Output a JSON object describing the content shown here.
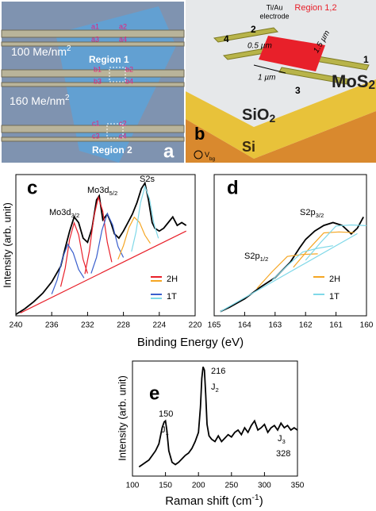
{
  "panel_a": {
    "labels": [
      "a1",
      "a2",
      "a3",
      "a4",
      "b1",
      "b2",
      "b3",
      "b4",
      "c1",
      "c2",
      "c3",
      "c4"
    ],
    "dose_1": {
      "text": "100 Me/nm",
      "sup": "2"
    },
    "region_1": "Region 1",
    "dose_2": {
      "text": "160 Me/nm",
      "sup": "2"
    },
    "region_2": "Region 2",
    "panel": "a"
  },
  "panel_b": {
    "electrode_label": [
      "Ti/Au",
      "electrode"
    ],
    "region_label": "Region 1,2",
    "electrode_numbers": [
      "1",
      "2",
      "3",
      "4"
    ],
    "dimensions": [
      "0.5 µm",
      "1.5 µm",
      "1 µm"
    ],
    "layers": [
      {
        "text": "MoS",
        "sub": "2"
      },
      {
        "text": "SiO",
        "sub": "2"
      },
      {
        "text": "Si"
      }
    ],
    "gate": {
      "text": "V",
      "sub": "bg"
    },
    "panel": "b"
  },
  "chart_data": [
    {
      "type": "line",
      "panel": "c",
      "x_label": "Binding Energy (eV)",
      "y_label": "Intensity (arb. unit)",
      "xlim": [
        240,
        220
      ],
      "xticks": [
        240,
        236,
        232,
        228,
        224,
        220
      ],
      "ylim": [
        0,
        100
      ],
      "series": [
        {
          "color": "#000000",
          "x": [
            240,
            239,
            238,
            237,
            236,
            235,
            234.5,
            234,
            233.5,
            233,
            232.5,
            232,
            231.5,
            231,
            230.7,
            230.3,
            229.8,
            229.4,
            229,
            228.5,
            228,
            227.5,
            227,
            226.5,
            226,
            225.6,
            225.2,
            224.8,
            224.5,
            224,
            223.5,
            223,
            222.5,
            222,
            221.5,
            221
          ],
          "values": [
            1,
            5,
            10,
            16,
            24,
            35,
            48,
            60,
            70,
            66,
            55,
            52,
            62,
            82,
            85,
            68,
            72,
            66,
            58,
            55,
            60,
            66,
            72,
            80,
            90,
            94,
            82,
            66,
            62,
            60,
            62,
            66,
            70,
            64,
            66,
            64
          ]
        },
        {
          "color": "#e8202a",
          "x": [
            239.5,
            221
          ],
          "values": [
            2,
            60
          ]
        },
        {
          "color": "#e8202a",
          "x": [
            235,
            234.5,
            234,
            233.5,
            233,
            232.5,
            232
          ],
          "values": [
            20.6,
            33.7,
            54.2,
            65.8,
            57.4,
            39.9,
            30
          ]
        },
        {
          "color": "#e8202a",
          "x": [
            232.3,
            231.8,
            231.3,
            230.8,
            230.3,
            229.8,
            229.3
          ],
          "values": [
            29.6,
            46,
            70,
            84,
            74,
            52,
            38
          ]
        },
        {
          "color": "#3a5fcd",
          "x": [
            236,
            235.4,
            234.8,
            234.2,
            233.6,
            233,
            232.4
          ],
          "values": [
            15.4,
            25.3,
            40.7,
            50.6,
            44.5,
            32.8,
            26.8
          ]
        },
        {
          "color": "#3a5fcd",
          "x": [
            231.6,
            231,
            230.4,
            229.8,
            229.2,
            228.6,
            228
          ],
          "values": [
            30,
            41.4,
            60.5,
            72.4,
            64.3,
            49,
            41.3
          ]
        },
        {
          "color": "#f5a623",
          "x": [
            228.6,
            228,
            227.4,
            226.8,
            226.2,
            225.6,
            225
          ],
          "values": [
            40,
            49.6,
            62.3,
            69.8,
            66.1,
            57.1,
            51.3
          ]
        },
        {
          "color": "#7fd8e8",
          "x": [
            227.1,
            226.6,
            226.1,
            225.6,
            225.1,
            224.6,
            224.1
          ],
          "values": [
            45.5,
            59.1,
            79.9,
            91.6,
            83,
            65.3,
            54.9
          ]
        }
      ],
      "annotations": [
        {
          "text": "Mo3d",
          "sub": "3/2"
        },
        {
          "text": "Mo3d",
          "sub": "5/2"
        },
        "S2s"
      ],
      "legend": [
        {
          "label": "2H",
          "colors": [
            "#e8202a",
            "#f5a623"
          ]
        },
        {
          "label": "1T",
          "colors": [
            "#3a5fcd",
            "#7fd8e8"
          ]
        }
      ]
    },
    {
      "type": "line",
      "panel": "d",
      "xlim": [
        165,
        160
      ],
      "xticks": [
        165,
        164,
        163,
        162,
        161,
        160
      ],
      "ylim": [
        0,
        100
      ],
      "series": [
        {
          "color": "#000000",
          "x": [
            164.8,
            164.5,
            164,
            163.5,
            163,
            162.5,
            162.2,
            162,
            161.7,
            161.4,
            161.1,
            160.8,
            160.5,
            160.3,
            160.1
          ],
          "values": [
            3,
            6,
            12,
            20,
            27,
            38,
            48,
            54,
            60,
            64,
            66,
            64,
            58,
            62,
            70
          ]
        },
        {
          "color": "#7fd8e8",
          "x": [
            164.8,
            160.3
          ],
          "values": [
            3,
            58.2
          ]
        },
        {
          "color": "#f5a623",
          "x": [
            163.6,
            163.1,
            162.6,
            162.1,
            161.6
          ],
          "values": [
            19.3,
            31.2,
            42,
            43.4,
            43.9
          ]
        },
        {
          "color": "#f5a623",
          "x": [
            162.4,
            161.9,
            161.4,
            160.9,
            160.4
          ],
          "values": [
            34.3,
            47.1,
            58.7,
            59.4,
            58.9
          ]
        },
        {
          "color": "#7fd8e8",
          "x": [
            163.1,
            162.6,
            162.1,
            161.6,
            161.1
          ],
          "values": [
            25.1,
            35.5,
            45.1,
            47.8,
            49.6
          ]
        },
        {
          "color": "#7fd8e8",
          "x": [
            162,
            161.5,
            161,
            160.5,
            160
          ],
          "values": [
            39.3,
            52,
            63.6,
            64.3,
            63.8
          ]
        }
      ],
      "annotations": [
        {
          "text": "S2p",
          "sub": "1/2"
        },
        {
          "text": "S2p",
          "sub": "3/2"
        }
      ],
      "legend": [
        {
          "label": "2H",
          "colors": [
            "#f5a623"
          ]
        },
        {
          "label": "1T",
          "colors": [
            "#7fd8e8"
          ]
        }
      ]
    },
    {
      "type": "line",
      "panel": "e",
      "x_label": {
        "text": "Raman shift (cm",
        "sup": "-1",
        "tail": ")"
      },
      "y_label": "Intensity (arb. unit)",
      "xlim": [
        100,
        350
      ],
      "xticks": [
        100,
        150,
        200,
        250,
        300,
        350
      ],
      "ylim": [
        0,
        100
      ],
      "series": [
        {
          "color": "#000000",
          "x": [
            110,
            115,
            120,
            125,
            130,
            135,
            140,
            145,
            148,
            150,
            152,
            155,
            160,
            165,
            170,
            175,
            180,
            185,
            190,
            195,
            200,
            203,
            205,
            207,
            209,
            211,
            213,
            216,
            220,
            225,
            230,
            235,
            240,
            245,
            250,
            255,
            260,
            265,
            270,
            275,
            280,
            285,
            290,
            295,
            300,
            305,
            310,
            315,
            320,
            325,
            330,
            335,
            340,
            345,
            350
          ],
          "values": [
            8,
            10,
            12,
            14,
            18,
            22,
            28,
            42,
            47,
            48,
            40,
            22,
            12,
            10,
            12,
            15,
            18,
            20,
            24,
            30,
            38,
            60,
            85,
            95,
            92,
            70,
            45,
            35,
            32,
            30,
            35,
            30,
            33,
            36,
            34,
            38,
            40,
            36,
            42,
            38,
            44,
            48,
            40,
            42,
            45,
            38,
            42,
            44,
            40,
            46,
            42,
            44,
            40,
            42,
            40
          ]
        }
      ],
      "annotations": [
        "150",
        {
          "text": "J",
          "sub": "1"
        },
        "216",
        {
          "text": "J",
          "sub": "2"
        },
        {
          "text": "J",
          "sub": "3"
        },
        "328"
      ]
    }
  ]
}
